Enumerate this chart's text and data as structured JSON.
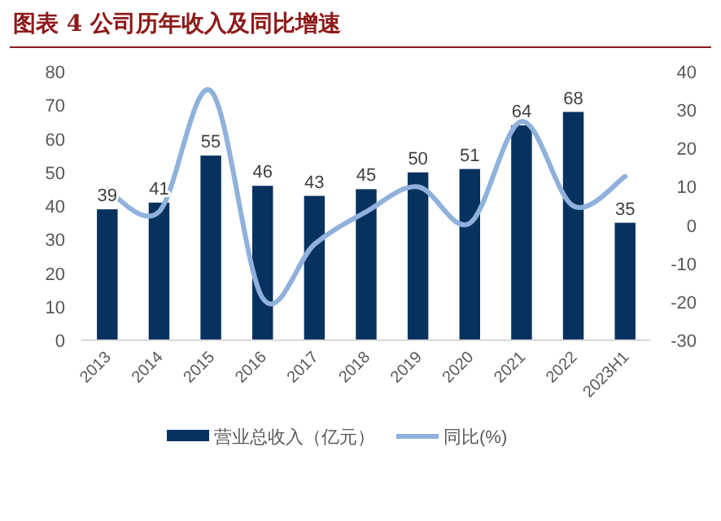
{
  "chart_data": {
    "type": "bar",
    "title": "图表 4 公司历年收入及同比增速",
    "categories": [
      "2013",
      "2014",
      "2015",
      "2016",
      "2017",
      "2018",
      "2019",
      "2020",
      "2021",
      "2022",
      "2023H1"
    ],
    "series": [
      {
        "name": "营业总收入（亿元）",
        "color": "#07325f",
        "values": [
          39,
          41,
          55,
          46,
          43,
          45,
          50,
          51,
          64,
          68,
          35
        ],
        "value_labels": [
          "39",
          "41",
          "55",
          "46",
          "43",
          "45",
          "50",
          "51",
          "64",
          "68",
          "35"
        ]
      },
      {
        "name": "同比(%)",
        "type": "line",
        "axis": "y2",
        "color": "#8fb1dc",
        "values": [
          9.2,
          3.5,
          35,
          -19,
          -5,
          3.5,
          10,
          0.5,
          27,
          5,
          12.7
        ]
      }
    ],
    "ylim": [
      0,
      80
    ],
    "yticks": [
      0,
      10,
      20,
      30,
      40,
      50,
      60,
      70,
      80
    ],
    "y2lim": [
      -30,
      40
    ],
    "y2ticks": [
      -30,
      -20,
      -10,
      0,
      10,
      20,
      30,
      40
    ],
    "legend": "bottom"
  }
}
